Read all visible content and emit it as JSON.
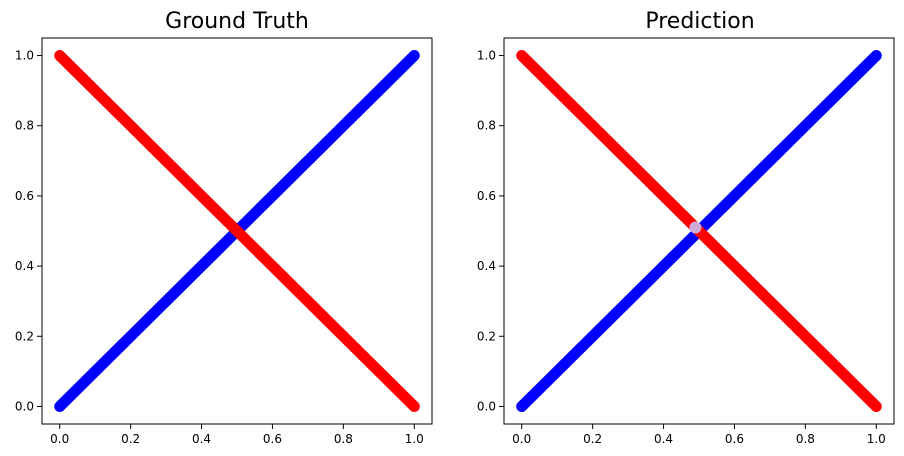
{
  "chart_data": [
    {
      "type": "scatter",
      "title": "Ground Truth",
      "xlabel": "",
      "ylabel": "",
      "xlim": [
        -0.05,
        1.05
      ],
      "ylim": [
        -0.05,
        1.05
      ],
      "xticks": [
        0.0,
        0.2,
        0.4,
        0.6,
        0.8,
        1.0
      ],
      "yticks": [
        0.0,
        0.2,
        0.4,
        0.6,
        0.8,
        1.0
      ],
      "xtick_labels": [
        "0.0",
        "0.2",
        "0.4",
        "0.6",
        "0.8",
        "1.0"
      ],
      "ytick_labels": [
        "0.0",
        "0.2",
        "0.4",
        "0.6",
        "0.8",
        "1.0"
      ],
      "grid": false,
      "series": [
        {
          "color": "#0000ff",
          "description_of_points": "dense points along y = x",
          "x_start": 0.0,
          "y_start": 0.0,
          "x_end": 1.0,
          "y_end": 1.0
        },
        {
          "color": "#ff0000",
          "description_of_points": "dense points along y = 1 - x",
          "x_start": 0.0,
          "y_start": 1.0,
          "x_end": 1.0,
          "y_end": 0.0
        }
      ]
    },
    {
      "type": "scatter",
      "title": "Prediction",
      "xlabel": "",
      "ylabel": "",
      "xlim": [
        -0.05,
        1.05
      ],
      "ylim": [
        -0.05,
        1.05
      ],
      "xticks": [
        0.0,
        0.2,
        0.4,
        0.6,
        0.8,
        1.0
      ],
      "yticks": [
        0.0,
        0.2,
        0.4,
        0.6,
        0.8,
        1.0
      ],
      "xtick_labels": [
        "0.0",
        "0.2",
        "0.4",
        "0.6",
        "0.8",
        "1.0"
      ],
      "ytick_labels": [
        "0.0",
        "0.2",
        "0.4",
        "0.6",
        "0.8",
        "1.0"
      ],
      "grid": false,
      "series": [
        {
          "color": "#0000ff",
          "description_of_points": "dense points along y = x",
          "x_start": 0.0,
          "y_start": 0.0,
          "x_end": 1.0,
          "y_end": 1.0
        },
        {
          "color": "#ff0000",
          "description_of_points": "dense points along y = 1 - x",
          "x_start": 0.0,
          "y_start": 1.0,
          "x_end": 1.0,
          "y_end": 0.0
        }
      ],
      "annotation": {
        "color": "#c8c8ff",
        "x": 0.49,
        "y": 0.51
      }
    }
  ]
}
